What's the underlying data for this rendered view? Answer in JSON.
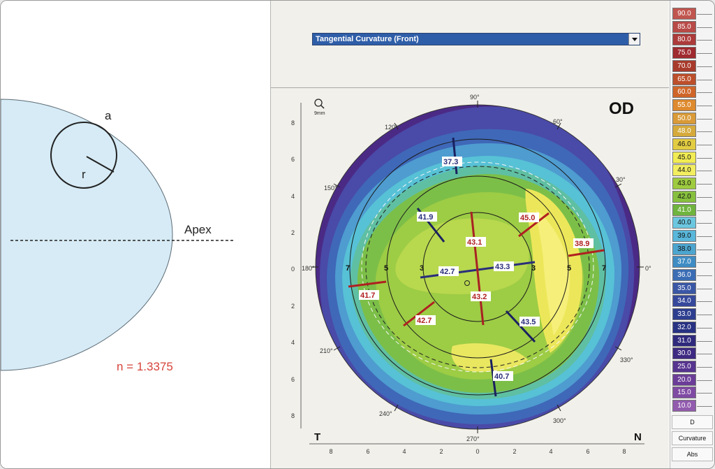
{
  "diagram": {
    "label_a": "a",
    "label_r": "r",
    "label_apex": "Apex",
    "refractive_index": "n = 1.3375",
    "fill_color": "#d6ebf5",
    "index_color": "#d6433a"
  },
  "toolbar": {
    "map_type": "Tangential Curvature (Front)"
  },
  "map": {
    "eye_label": "OD",
    "zoom_label": "9mm",
    "temporal_label": "T",
    "nasal_label": "N",
    "angle_labels": {
      "a0": "0°",
      "a30": "30°",
      "a60": "60°",
      "a90": "90°",
      "a120": "120°",
      "a150": "150°",
      "a180": "180°",
      "a210": "210°",
      "a240": "240°",
      "a270": "270°",
      "a300": "300°",
      "a330": "330°"
    },
    "y_ticks": [
      "8",
      "6",
      "4",
      "2",
      "0",
      "2",
      "4",
      "6",
      "8"
    ],
    "x_ticks": [
      "8",
      "6",
      "4",
      "2",
      "0",
      "2",
      "4",
      "6",
      "8"
    ],
    "ring_labels": [
      "7",
      "5",
      "3",
      "3",
      "5",
      "7"
    ],
    "readings": {
      "r1": "37.3",
      "r2": "41.9",
      "r3": "43.1",
      "r4": "45.0",
      "r5": "38.9",
      "r6": "42.7",
      "r7": "43.3",
      "r8": "41.7",
      "r9": "42.7",
      "r10": "43.2",
      "r11": "43.5",
      "r12": "40.7"
    }
  },
  "scale": {
    "values": [
      "90.0",
      "85.0",
      "80.0",
      "75.0",
      "70.0",
      "65.0",
      "60.0",
      "55.0",
      "50.0",
      "48.0",
      "46.0",
      "45.0",
      "44.0",
      "43.0",
      "42.0",
      "41.0",
      "40.0",
      "39.0",
      "38.0",
      "37.0",
      "36.0",
      "35.0",
      "34.0",
      "33.0",
      "32.0",
      "31.0",
      "30.0",
      "25.0",
      "20.0",
      "15.0",
      "10.0"
    ],
    "colors": [
      "#c1554f",
      "#b84a47",
      "#ad3b3b",
      "#9f2a2f",
      "#a83a2c",
      "#bd4f2b",
      "#cf6529",
      "#de8a2e",
      "#d99a37",
      "#d5aa3b",
      "#e2cc42",
      "#f1ec53",
      "#f2ee60",
      "#9ecb3f",
      "#87c03e",
      "#6fb43e",
      "#6bc7e0",
      "#58b7da",
      "#4ca5cf",
      "#3f8cc4",
      "#3b6db5",
      "#3a57a6",
      "#35489b",
      "#2d3d8f",
      "#283283",
      "#302a7e",
      "#3e2a82",
      "#56348f",
      "#6b3d98",
      "#7f4aa3",
      "#925bae"
    ],
    "unit": "D",
    "mode": "Curvature",
    "abs": "Abs"
  }
}
